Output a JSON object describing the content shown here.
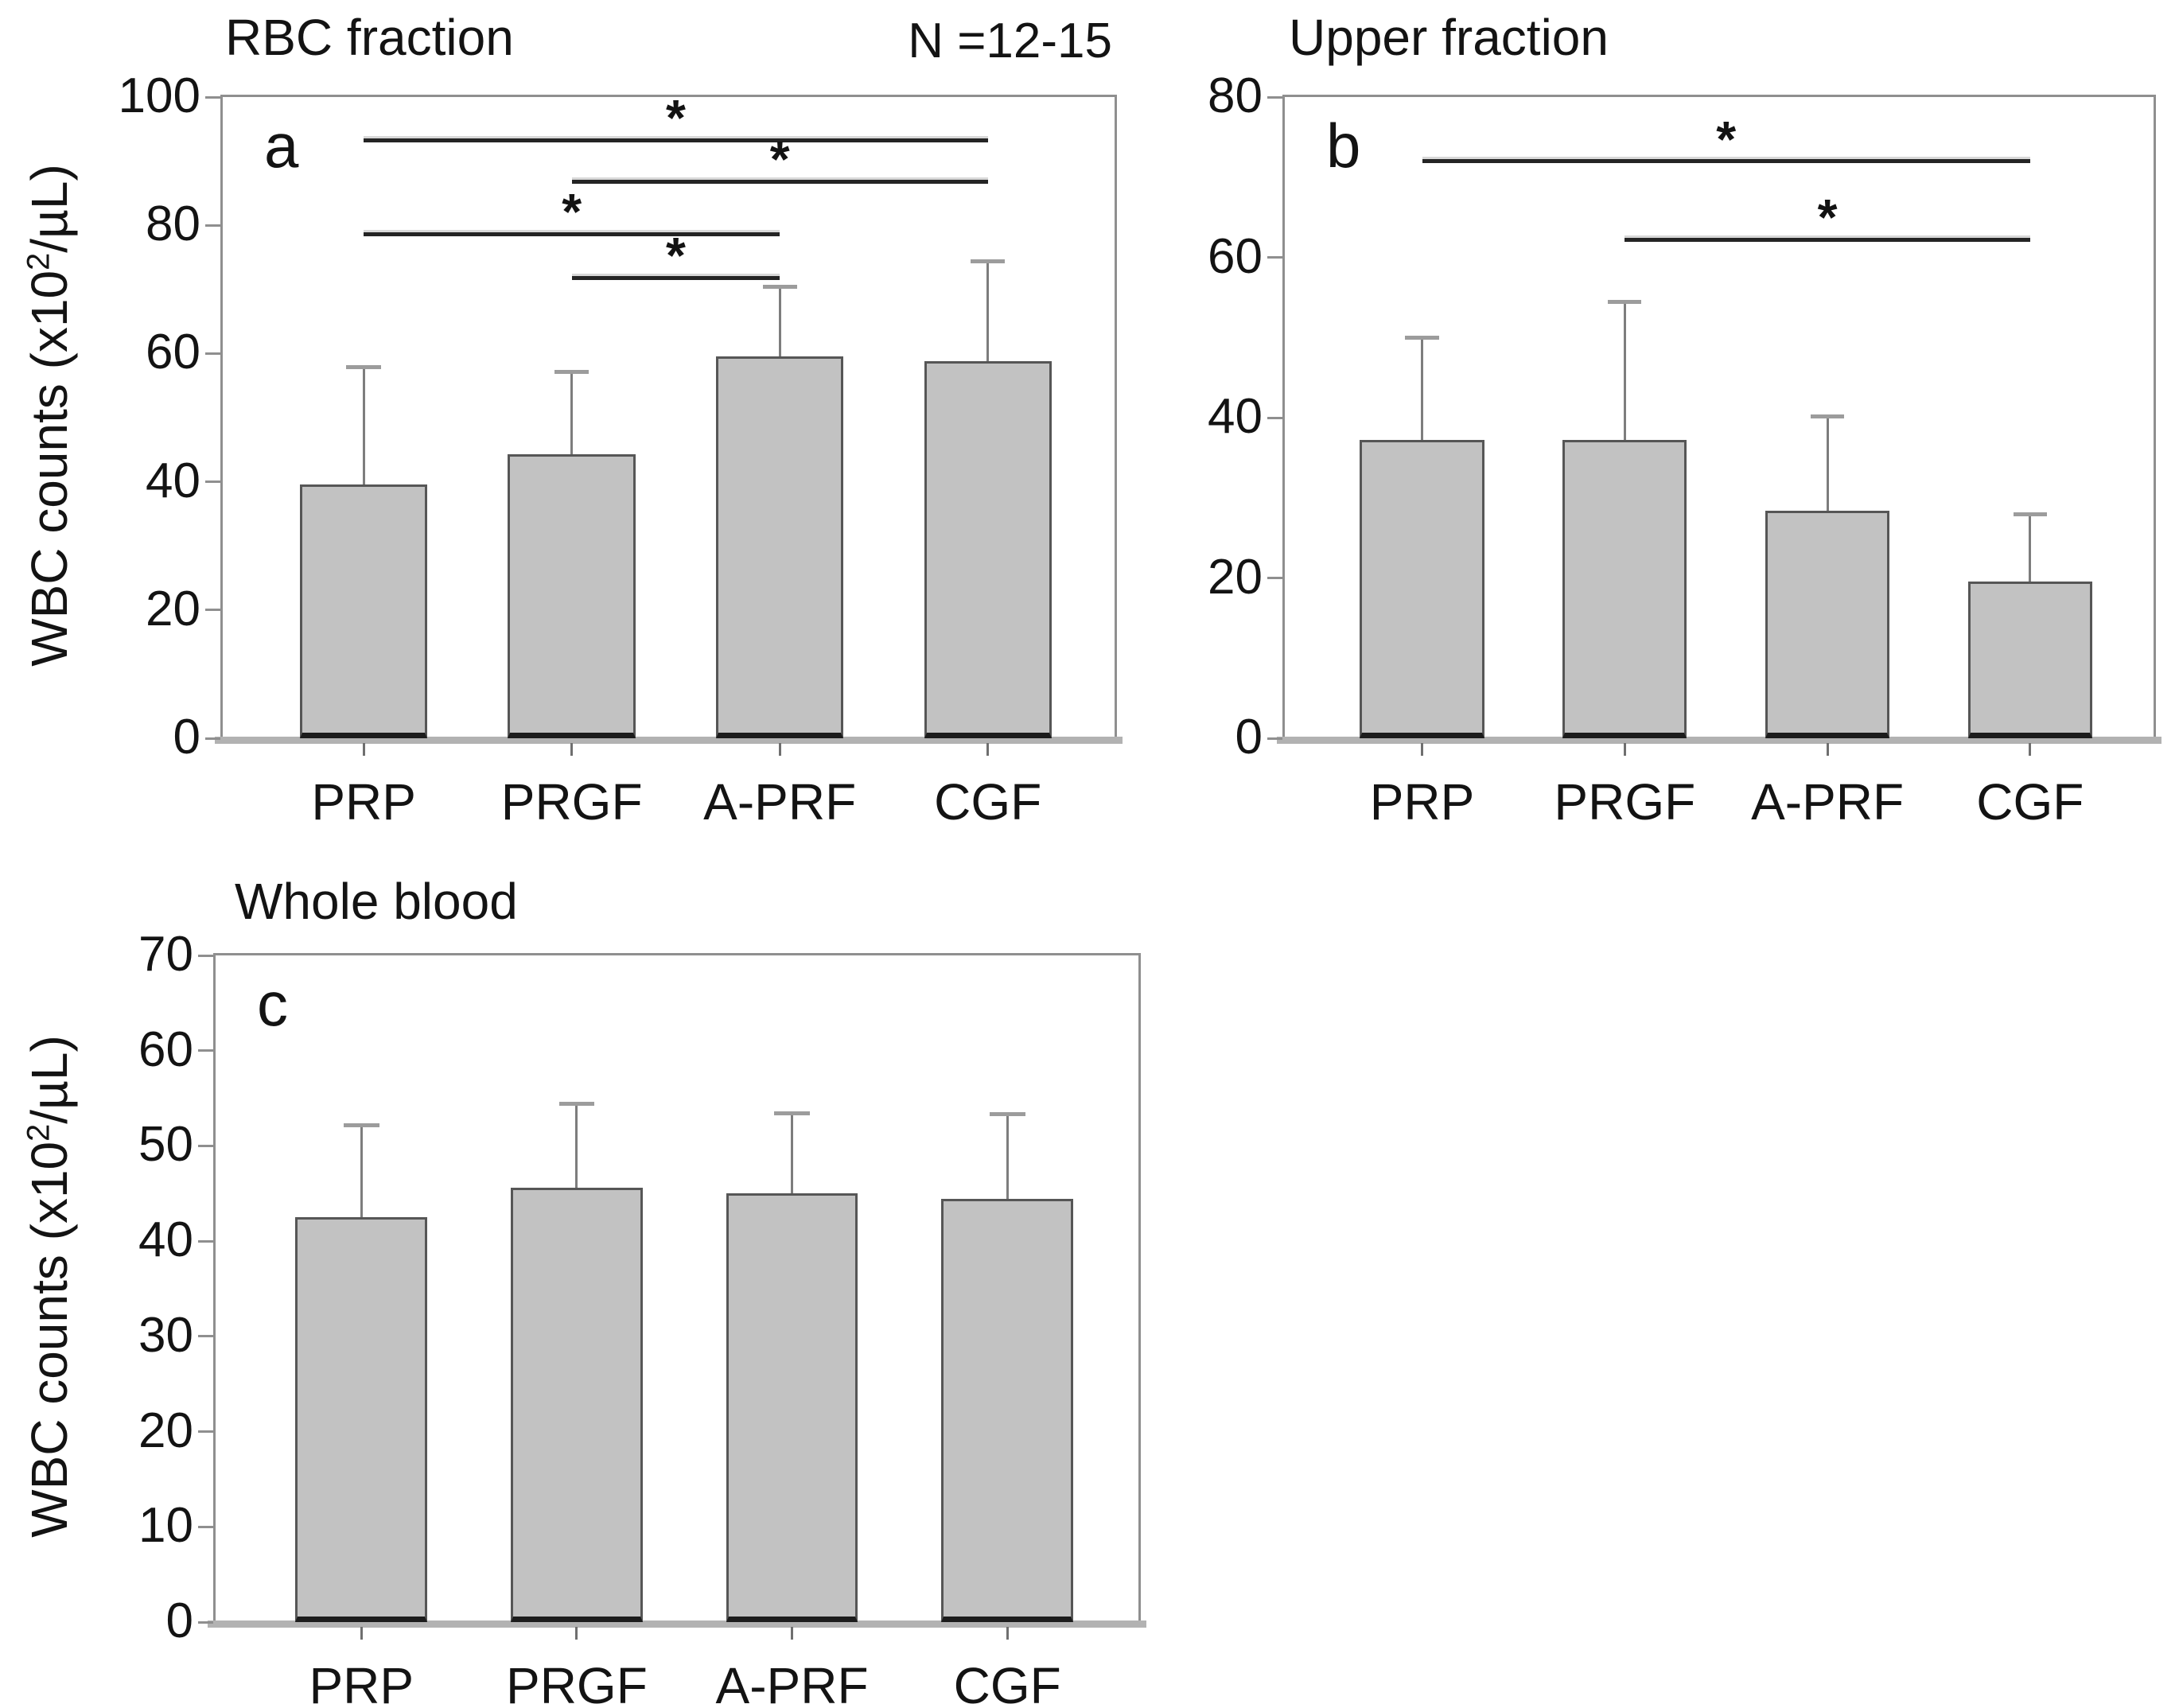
{
  "figure": {
    "background": "#ffffff",
    "n_label": "N =12-15",
    "y_axis_label": {
      "pre": "WBC counts (x10",
      "sup": "2",
      "post": "/µL)"
    },
    "colors": {
      "bar_fill": "#c2c2c2",
      "bar_border": "#565656",
      "bar_bottom": "#1c1c1c",
      "error_stem": "#7d7d7d",
      "error_cap": "#9c9c9c",
      "frame": "#8f8f8f",
      "baseline": "#b2b2b2",
      "sig_line": "#242424",
      "text": "#131313"
    }
  },
  "chart_data": [
    {
      "type": "bar",
      "panel": "a",
      "panel_label": "a",
      "title": "RBC fraction",
      "ylabel": "WBC counts (x10^2/µL)",
      "categories": [
        "PRP",
        "PRGF",
        "A-PRF",
        "CGF"
      ],
      "values": [
        39.6,
        44.3,
        59.5,
        58.8
      ],
      "errors_up": [
        58.0,
        57.2,
        70.5,
        74.5
      ],
      "ylim": [
        0,
        100
      ],
      "ytick_step": 20,
      "grid": false,
      "significance": [
        {
          "from": "PRP",
          "to": "CGF",
          "y": 93.3,
          "label": "*"
        },
        {
          "from": "PRGF",
          "to": "CGF",
          "y": 86.8,
          "label": "*"
        },
        {
          "from": "PRP",
          "to": "A-PRF",
          "y": 78.6,
          "label": "*"
        },
        {
          "from": "PRGF",
          "to": "A-PRF",
          "y": 71.8,
          "label": "*"
        }
      ]
    },
    {
      "type": "bar",
      "panel": "b",
      "panel_label": "b",
      "title": "Upper fraction",
      "ylabel": "",
      "categories": [
        "PRP",
        "PRGF",
        "A-PRF",
        "CGF"
      ],
      "values": [
        37.2,
        37.2,
        28.4,
        19.6
      ],
      "errors_up": [
        50.0,
        54.5,
        40.2,
        28.0
      ],
      "ylim": [
        0,
        80
      ],
      "ytick_step": 20,
      "grid": false,
      "significance": [
        {
          "from": "PRP",
          "to": "CGF",
          "y": 72.0,
          "label": "*"
        },
        {
          "from": "PRGF",
          "to": "CGF",
          "y": 62.2,
          "label": "*"
        }
      ]
    },
    {
      "type": "bar",
      "panel": "c",
      "panel_label": "c",
      "title": "Whole blood",
      "ylabel": "WBC counts (x10^2/µL)",
      "categories": [
        "PRP",
        "PRGF",
        "A-PRF",
        "CGF"
      ],
      "values": [
        42.5,
        45.6,
        45.0,
        44.4
      ],
      "errors_up": [
        52.2,
        54.5,
        53.5,
        53.4
      ],
      "ylim": [
        0,
        70
      ],
      "ytick_step": 10,
      "grid": false,
      "significance": []
    }
  ]
}
